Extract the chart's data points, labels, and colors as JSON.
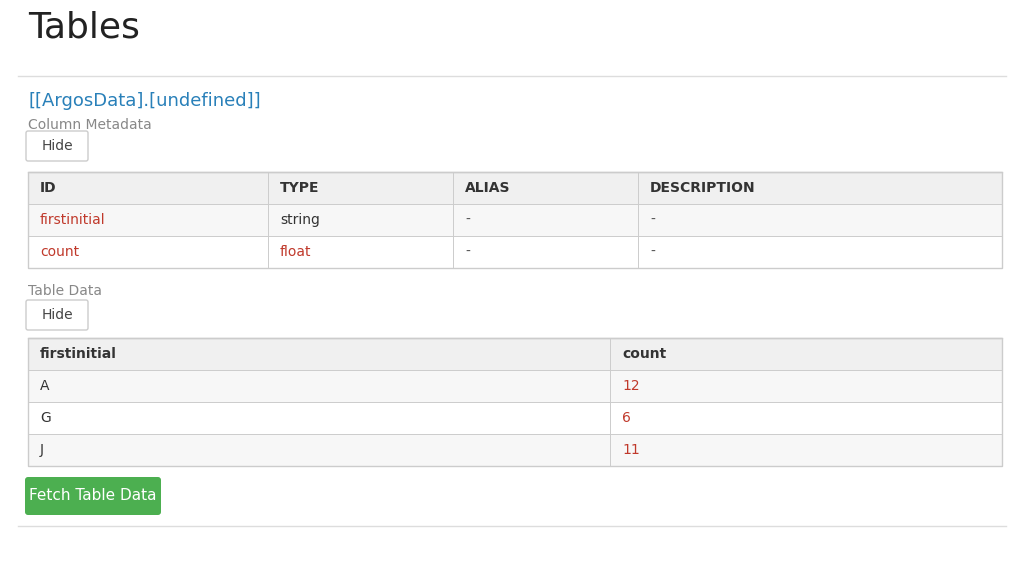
{
  "title": "Tables",
  "table_name": "[[ArgosData].[undefined]]",
  "col_metadata_label": "Column Metadata",
  "metadata_columns": [
    "ID",
    "TYPE",
    "ALIAS",
    "DESCRIPTION"
  ],
  "metadata_rows": [
    [
      "firstinitial",
      "string",
      "-",
      "-"
    ],
    [
      "count",
      "float",
      "-",
      "-"
    ]
  ],
  "metadata_id_color": "#c0392b",
  "metadata_type_color_row0": "#333333",
  "metadata_type_color_row1": "#c0392b",
  "table_data_label": "Table Data",
  "data_columns": [
    "firstinitial",
    "count"
  ],
  "data_rows": [
    [
      "A",
      "12"
    ],
    [
      "G",
      "6"
    ],
    [
      "J",
      "11"
    ]
  ],
  "data_col0_color": "#333333",
  "data_col1_color": "#c0392b",
  "header_bg": "#f0f0f0",
  "row_bg_odd": "#ffffff",
  "row_bg_even": "#f7f7f7",
  "table_border_color": "#cccccc",
  "button_bg": "#4caf50",
  "button_text": "Fetch Table Data",
  "button_text_color": "#ffffff",
  "hide_button_label": "Hide",
  "bg_color": "#ffffff",
  "title_color": "#222222",
  "table_name_color": "#2980b9",
  "col_meta_label_color": "#888888",
  "table_data_label_color": "#888888",
  "separator_color": "#dddddd",
  "header_text_color": "#333333",
  "dash_color": "#555555",
  "figsize": [
    10.24,
    5.81
  ],
  "dpi": 100
}
